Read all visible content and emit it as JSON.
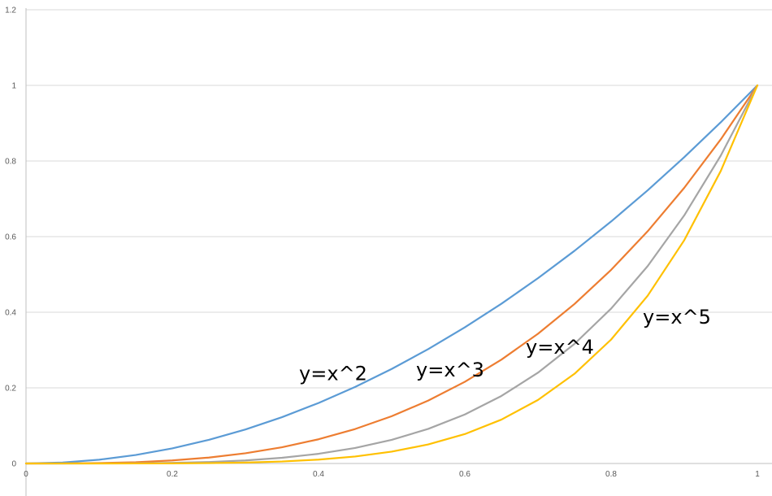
{
  "chart_data": {
    "type": "line",
    "title": "",
    "xlabel": "",
    "ylabel": "",
    "xlim": [
      0,
      1
    ],
    "ylim": [
      0,
      1.2
    ],
    "grid": {
      "horizontal": true,
      "vertical": false
    },
    "legend": "none",
    "x_ticks": [
      "0",
      "0.2",
      "0.4",
      "0.6",
      "0.8",
      "1"
    ],
    "y_ticks": [
      "0",
      "0.2",
      "0.4",
      "0.6",
      "0.8",
      "1",
      "1.2"
    ],
    "x": [
      0,
      0.05,
      0.1,
      0.15,
      0.2,
      0.25,
      0.3,
      0.35,
      0.4,
      0.45,
      0.5,
      0.55,
      0.6,
      0.65,
      0.7,
      0.75,
      0.8,
      0.85,
      0.9,
      0.95,
      1
    ],
    "series": [
      {
        "name": "y=x^2",
        "color": "#5B9BD5",
        "label_anchor": [
          0.42,
          0.22
        ],
        "values": [
          0,
          0.0025,
          0.01,
          0.0225,
          0.04,
          0.0625,
          0.09,
          0.1225,
          0.16,
          0.2025,
          0.25,
          0.3025,
          0.36,
          0.4225,
          0.49,
          0.5625,
          0.64,
          0.7225,
          0.81,
          0.9025,
          1
        ]
      },
      {
        "name": "y=x^3",
        "color": "#ED7D31",
        "label_anchor": [
          0.58,
          0.23
        ],
        "values": [
          0,
          0.000125,
          0.001,
          0.003375,
          0.008,
          0.015625,
          0.027,
          0.042875,
          0.064,
          0.091125,
          0.125,
          0.166375,
          0.216,
          0.274625,
          0.343,
          0.421875,
          0.512,
          0.614125,
          0.729,
          0.857375,
          1
        ]
      },
      {
        "name": "y=x^4",
        "color": "#A5A5A5",
        "label_anchor": [
          0.73,
          0.29
        ],
        "values": [
          0,
          6.25e-06,
          0.0001,
          0.00050625,
          0.0016,
          0.00390625,
          0.0081,
          0.01500625,
          0.0256,
          0.04100625,
          0.0625,
          0.09150625,
          0.1296,
          0.17850625,
          0.2401,
          0.31640625,
          0.4096,
          0.52200625,
          0.6561,
          0.81450625,
          1
        ]
      },
      {
        "name": "y=x^5",
        "color": "#FFC000",
        "label_anchor": [
          0.89,
          0.37
        ],
        "values": [
          0,
          3.125e-07,
          1e-05,
          7.59375e-05,
          0.00032,
          0.0009765625,
          0.00243,
          0.0052521875,
          0.01024,
          0.0184528125,
          0.03125,
          0.0503284375,
          0.07776,
          0.1160290625,
          0.16807,
          0.2373046875,
          0.32768,
          0.4437053125,
          0.59049,
          0.7737809375,
          1
        ]
      }
    ]
  }
}
